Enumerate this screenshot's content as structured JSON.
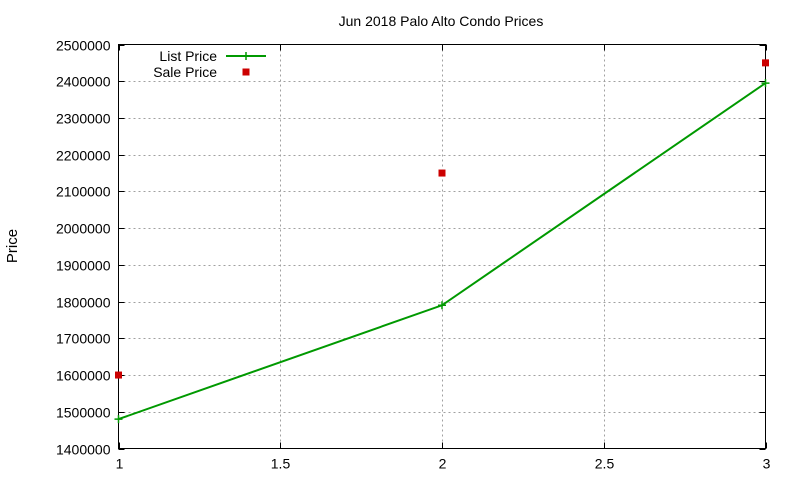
{
  "chart_data": {
    "type": "line",
    "title": "Jun 2018 Palo Alto Condo Prices",
    "xlabel": "",
    "ylabel": "Price",
    "xlim": [
      1,
      3
    ],
    "ylim": [
      1400000,
      2500000
    ],
    "x_ticks": [
      1,
      1.5,
      2,
      2.5,
      3
    ],
    "x_tick_labels": [
      "1",
      "1.5",
      "2",
      "2.5",
      "3"
    ],
    "y_ticks": [
      1400000,
      1500000,
      1600000,
      1700000,
      1800000,
      1900000,
      2000000,
      2100000,
      2200000,
      2300000,
      2400000,
      2500000
    ],
    "y_tick_labels": [
      "1400000",
      "1500000",
      "1600000",
      "1700000",
      "1800000",
      "1900000",
      "2000000",
      "2100000",
      "2200000",
      "2300000",
      "2400000",
      "2500000"
    ],
    "grid": true,
    "legend_position": "top-left",
    "series": [
      {
        "name": "List Price",
        "style": "linespoints",
        "color": "#009900",
        "x": [
          1,
          2,
          3
        ],
        "y": [
          1480000,
          1790000,
          2395000
        ]
      },
      {
        "name": "Sale Price",
        "style": "points",
        "color": "#cc0000",
        "x": [
          1,
          2,
          3
        ],
        "y": [
          1600000,
          2150000,
          2450000
        ]
      }
    ]
  }
}
